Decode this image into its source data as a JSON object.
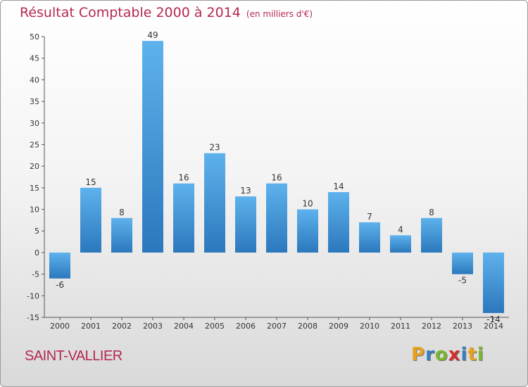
{
  "title": "Résultat Comptable 2000 à 2014",
  "unit_note": "(en milliers d'€)",
  "town": "SAINT-VALLIER",
  "logo": {
    "letters": [
      "P",
      "r",
      "o",
      "x",
      "i",
      "t",
      "i"
    ],
    "colors": [
      "#e8a21e",
      "#3a7ec2",
      "#79b72e",
      "#d12e2e",
      "#3a7ec2",
      "#e8a21e",
      "#79b72e"
    ]
  },
  "colors": {
    "bar_top": "#5eb2ec",
    "bar_bottom": "#2b78bd",
    "title": "#b5284f"
  },
  "chart_data": {
    "type": "bar",
    "title": "Résultat Comptable 2000 à 2014",
    "xlabel": "",
    "ylabel": "",
    "ylim": [
      -15,
      50
    ],
    "yticks": [
      -15,
      -10,
      -5,
      0,
      5,
      10,
      15,
      20,
      25,
      30,
      35,
      40,
      45,
      50
    ],
    "grid": false,
    "categories": [
      "2000",
      "2001",
      "2002",
      "2003",
      "2004",
      "2005",
      "2006",
      "2007",
      "2008",
      "2009",
      "2010",
      "2011",
      "2012",
      "2013",
      "2014"
    ],
    "values": [
      -6,
      15,
      8,
      49,
      16,
      23,
      13,
      16,
      10,
      14,
      7,
      4,
      8,
      -5,
      -14
    ]
  }
}
